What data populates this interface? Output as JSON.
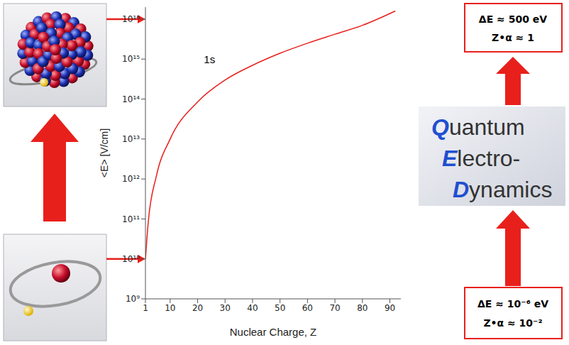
{
  "chart_data": {
    "type": "line",
    "x_label": "Nuclear Charge, Z",
    "y_label": "<E>  [V/cm]",
    "log": "y",
    "grid": false,
    "x": [
      1,
      2,
      5,
      10,
      20,
      30,
      40,
      50,
      60,
      70,
      80,
      92
    ],
    "series": [
      {
        "name": "1s",
        "color": "#e8201c",
        "values": [
          10000000000,
          80000000000,
          1200000000000,
          10000000000000,
          85000000000000,
          300000000000000,
          700000000000000,
          1400000000000000,
          2500000000000000,
          4200000000000000,
          7000000000000000,
          16000000000000000
        ]
      }
    ],
    "xlim": [
      1,
      94
    ],
    "xticks": [
      1,
      10,
      20,
      30,
      40,
      50,
      60,
      70,
      80,
      90
    ],
    "ylim": [
      1000000000,
      20000000000000000
    ],
    "yticks": [
      {
        "value": 1000000000,
        "label": "10⁹"
      },
      {
        "value": 10000000000,
        "label": "10¹⁰"
      },
      {
        "value": 100000000000,
        "label": "10¹¹"
      },
      {
        "value": 1000000000000,
        "label": "10¹²"
      },
      {
        "value": 10000000000000,
        "label": "10¹³"
      },
      {
        "value": 100000000000000,
        "label": "10¹⁴"
      },
      {
        "value": 1000000000000000,
        "label": "10¹⁵"
      },
      {
        "value": 10000000000000000,
        "label": "10¹⁶"
      }
    ],
    "annotations": {
      "top_box": [
        "ΔE ≈ 500 eV",
        "Z•α ≈ 1"
      ],
      "middle_box": [
        "Quantum",
        "Electro-",
        "Dynamics"
      ],
      "bottom_box": [
        "ΔE ≈ 10⁻⁶ eV",
        "Z•α ≈ 10⁻²"
      ]
    }
  }
}
